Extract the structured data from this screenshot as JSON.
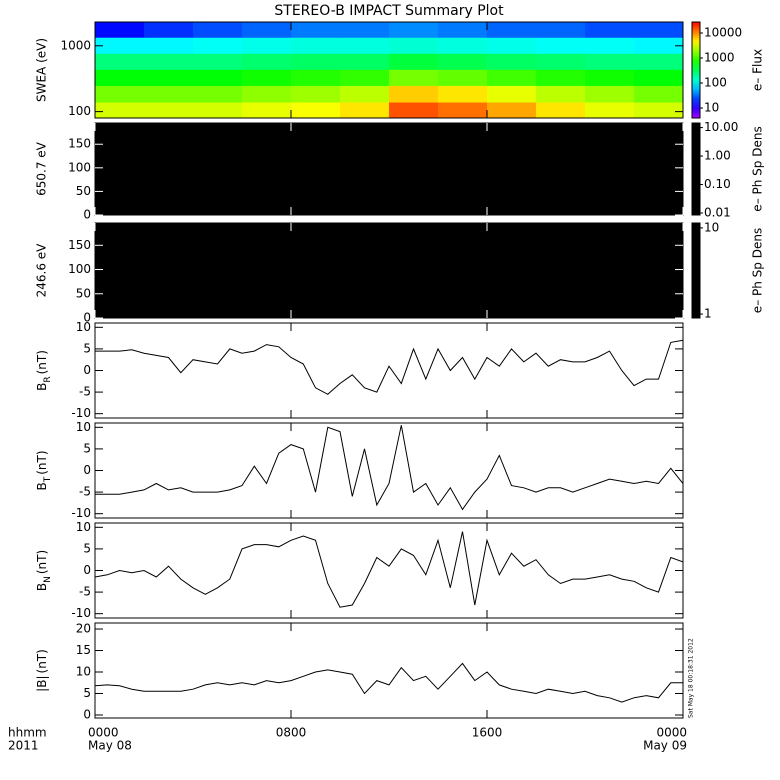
{
  "title": "STEREO-B IMPACT Summary Plot",
  "timestamp": "Sat May 18 00:18:31 2012",
  "x_axis": {
    "xlim": [
      0,
      24
    ],
    "xticks": [
      {
        "value": 0,
        "label": "0000"
      },
      {
        "value": 8,
        "label": "0800"
      },
      {
        "value": 16,
        "label": "1600"
      },
      {
        "value": 24,
        "label": "0000"
      }
    ],
    "xtick_dates": [
      {
        "value": 0,
        "label": "May 08"
      },
      {
        "value": 24,
        "label": "May 09"
      }
    ],
    "label_lines": [
      "hhmm",
      "2011"
    ]
  },
  "chart_data": [
    {
      "type": "heatmap",
      "ylabel": "SWEA (eV)",
      "ylog": true,
      "ylim": [
        80,
        2300
      ],
      "yticks": [
        100,
        1000
      ],
      "time_bins": [
        0,
        2,
        4,
        6,
        8,
        10,
        12,
        14,
        16,
        18,
        20,
        22,
        24
      ],
      "energy_bins": [
        80,
        140,
        250,
        440,
        770,
        1350,
        2300
      ],
      "values": [
        [
          3000,
          3000,
          3000,
          3500,
          4000,
          5000,
          15000,
          12000,
          8000,
          5000,
          3500,
          3000
        ],
        [
          1500,
          1500,
          1500,
          1800,
          2000,
          2500,
          6000,
          5000,
          3500,
          2500,
          2000,
          1500
        ],
        [
          600,
          600,
          600,
          700,
          800,
          900,
          1500,
          1300,
          1000,
          800,
          700,
          600
        ],
        [
          250,
          250,
          250,
          280,
          300,
          300,
          400,
          350,
          300,
          280,
          250,
          250
        ],
        [
          90,
          90,
          100,
          110,
          120,
          120,
          130,
          120,
          110,
          100,
          100,
          90
        ],
        [
          15,
          20,
          25,
          30,
          35,
          35,
          40,
          35,
          30,
          30,
          25,
          25
        ]
      ],
      "colorbar": {
        "label": "e– Flux",
        "log": true,
        "lim": [
          4,
          27500
        ],
        "colormap": "rainbow",
        "ticks": [
          10,
          100,
          1000,
          10000
        ]
      }
    },
    {
      "type": "heatmap",
      "ylabel": "650.7 eV",
      "ylim": [
        0,
        195
      ],
      "yticks": [
        0,
        50,
        100,
        150
      ],
      "fill": "#000000",
      "colorbar": {
        "label": "e– Ph Sp Dens",
        "log": true,
        "lim": [
          0.0085,
          14.5
        ],
        "fill": "#000000",
        "ticks": [
          {
            "value": 10,
            "label": "10.00"
          },
          {
            "value": 1,
            "label": "1.00"
          },
          {
            "value": 0.1,
            "label": "0.10"
          },
          {
            "value": 0.01,
            "label": "0.01"
          }
        ]
      }
    },
    {
      "type": "heatmap",
      "ylabel": "246.6 eV",
      "ylim": [
        0,
        196
      ],
      "yticks": [
        0,
        50,
        100,
        150
      ],
      "fill": "#000000",
      "colorbar": {
        "label": "e– Ph Sp Dens",
        "log": true,
        "lim": [
          0.9,
          11.4
        ],
        "fill": "#000000",
        "ticks": [
          10,
          1
        ]
      }
    },
    {
      "type": "line",
      "ylabel": {
        "main": "B",
        "sub": "R",
        "unit": "(nT)"
      },
      "ylim": [
        -11,
        11
      ],
      "yticks": [
        -10,
        -5,
        0,
        5,
        10
      ],
      "color": "#000000",
      "x": [
        0,
        0.5,
        1,
        1.5,
        2,
        2.5,
        3,
        3.5,
        4,
        4.5,
        5,
        5.5,
        6,
        6.5,
        7,
        7.5,
        8,
        8.5,
        9,
        9.5,
        10,
        10.5,
        11,
        11.5,
        12,
        12.5,
        13,
        13.5,
        14,
        14.5,
        15,
        15.5,
        16,
        16.5,
        17,
        17.5,
        18,
        18.5,
        19,
        19.5,
        20,
        20.5,
        21,
        21.5,
        22,
        22.5,
        23,
        23.5,
        24
      ],
      "values": [
        4.5,
        4.5,
        4.5,
        4.8,
        4,
        3.5,
        3,
        -0.5,
        2.5,
        2,
        1.5,
        5,
        4,
        4.5,
        6,
        5.5,
        3,
        1.5,
        -4,
        -5.5,
        -3,
        -1,
        -4,
        -5,
        1,
        -3,
        5,
        -2,
        5,
        0,
        3,
        -2,
        3,
        1,
        5,
        2,
        4,
        1,
        2.5,
        2,
        2,
        3,
        4.5,
        0,
        -3.5,
        -2,
        -2,
        6.5,
        7
      ]
    },
    {
      "type": "line",
      "ylabel": {
        "main": "B",
        "sub": "T",
        "unit": "(nT)"
      },
      "ylim": [
        -11,
        11
      ],
      "yticks": [
        -10,
        -5,
        0,
        5,
        10
      ],
      "color": "#000000",
      "x": [
        0,
        0.5,
        1,
        1.5,
        2,
        2.5,
        3,
        3.5,
        4,
        4.5,
        5,
        5.5,
        6,
        6.5,
        7,
        7.5,
        8,
        8.5,
        9,
        9.5,
        10,
        10.5,
        11,
        11.5,
        12,
        12.5,
        13,
        13.5,
        14,
        14.5,
        15,
        15.5,
        16,
        16.5,
        17,
        17.5,
        18,
        18.5,
        19,
        19.5,
        20,
        20.5,
        21,
        21.5,
        22,
        22.5,
        23,
        23.5,
        24
      ],
      "values": [
        -5.5,
        -5.5,
        -5.5,
        -5,
        -4.5,
        -3,
        -4.5,
        -4,
        -5,
        -5,
        -5,
        -4.5,
        -3.5,
        1,
        -3,
        4,
        6,
        5,
        -5,
        10,
        9,
        -6,
        5,
        -8,
        -3,
        10.5,
        -5,
        -3,
        -8,
        -4,
        -9,
        -5,
        -2,
        3.5,
        -3.5,
        -4,
        -5,
        -4,
        -4,
        -5,
        -4,
        -3,
        -2,
        -2.5,
        -3,
        -2.5,
        -3,
        0.5,
        -3
      ]
    },
    {
      "type": "line",
      "ylabel": {
        "main": "B",
        "sub": "N",
        "unit": "(nT)"
      },
      "ylim": [
        -11,
        11
      ],
      "yticks": [
        -10,
        -5,
        0,
        5,
        10
      ],
      "color": "#000000",
      "x": [
        0,
        0.5,
        1,
        1.5,
        2,
        2.5,
        3,
        3.5,
        4,
        4.5,
        5,
        5.5,
        6,
        6.5,
        7,
        7.5,
        8,
        8.5,
        9,
        9.5,
        10,
        10.5,
        11,
        11.5,
        12,
        12.5,
        13,
        13.5,
        14,
        14.5,
        15,
        15.5,
        16,
        16.5,
        17,
        17.5,
        18,
        18.5,
        19,
        19.5,
        20,
        20.5,
        21,
        21.5,
        22,
        22.5,
        23,
        23.5,
        24
      ],
      "values": [
        -1.5,
        -1,
        0,
        -0.5,
        0,
        -1.5,
        1,
        -2,
        -4,
        -5.5,
        -4,
        -2,
        5,
        6,
        6,
        5.5,
        7,
        8,
        7,
        -3,
        -8.5,
        -8,
        -3,
        3,
        1,
        5,
        3.5,
        -1,
        7,
        -4,
        9,
        -8,
        7,
        -1,
        4,
        1,
        2.5,
        -1,
        -3,
        -2,
        -2,
        -1.5,
        -1,
        -2,
        -2.5,
        -4,
        -5,
        3,
        2
      ]
    },
    {
      "type": "line",
      "ylabel": {
        "main": "|B|",
        "unit": "(nT)"
      },
      "ylim": [
        -0.7,
        21.4
      ],
      "yticks": [
        0,
        5,
        10,
        15,
        20
      ],
      "color": "#000000",
      "x": [
        0,
        0.5,
        1,
        1.5,
        2,
        2.5,
        3,
        3.5,
        4,
        4.5,
        5,
        5.5,
        6,
        6.5,
        7,
        7.5,
        8,
        8.5,
        9,
        9.5,
        10,
        10.5,
        11,
        11.5,
        12,
        12.5,
        13,
        13.5,
        14,
        14.5,
        15,
        15.5,
        16,
        16.5,
        17,
        17.5,
        18,
        18.5,
        19,
        19.5,
        20,
        20.5,
        21,
        21.5,
        22,
        22.5,
        23,
        23.5,
        24
      ],
      "values": [
        6.8,
        7,
        6.8,
        6,
        5.5,
        5.5,
        5.5,
        5.5,
        6,
        7,
        7.5,
        7,
        7.5,
        7,
        8,
        7.5,
        8,
        9,
        10,
        10.5,
        10,
        9.5,
        5,
        8,
        7,
        11,
        8,
        9,
        6,
        9,
        12,
        8,
        10,
        7,
        6,
        5.5,
        5,
        6,
        5.5,
        5,
        5.5,
        4.5,
        4,
        3,
        4,
        4.5,
        4,
        7.5,
        7.5
      ]
    }
  ]
}
